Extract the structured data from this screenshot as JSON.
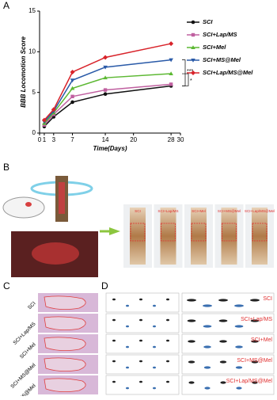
{
  "chart_data": {
    "type": "line",
    "y_label": "BBB Locomotion Score",
    "x_label": "Time(Days)",
    "x": [
      1,
      3,
      7,
      14,
      28
    ],
    "xlim": [
      0,
      30
    ],
    "xticks": [
      0,
      1,
      3,
      7,
      14,
      20,
      28,
      30
    ],
    "ylim": [
      0,
      15
    ],
    "yticks": [
      0,
      5,
      10,
      15
    ],
    "annotations": [
      "***",
      "*"
    ],
    "series": [
      {
        "name": "SCI",
        "color": "#111111",
        "values": [
          0.8,
          2.0,
          3.8,
          4.8,
          5.8
        ]
      },
      {
        "name": "SCI+Lap/MS",
        "color": "#c060a0",
        "values": [
          1.0,
          2.3,
          4.5,
          5.3,
          6.0
        ]
      },
      {
        "name": "SCI+Mel",
        "color": "#5cb832",
        "values": [
          1.2,
          2.5,
          5.5,
          6.8,
          7.3
        ]
      },
      {
        "name": "SCI+MS@Mel",
        "color": "#2a5aa8",
        "values": [
          1.4,
          2.7,
          6.5,
          8.1,
          9.0
        ]
      },
      {
        "name": "SCI+Lap/MS@Mel",
        "color": "#d8232a",
        "values": [
          1.6,
          2.9,
          7.5,
          9.3,
          11.0
        ]
      }
    ]
  },
  "panels": [
    "A",
    "B",
    "C",
    "D"
  ],
  "panel_b": {
    "labels": [
      "SCI",
      "SCI+Lap/MS",
      "SCI+Mel",
      "SCI+MS@Mel",
      "SCI+Lap/MS@Mel"
    ]
  },
  "panel_c": {
    "labels": [
      "SCI",
      "SCI+Lap/MS",
      "SCI+Mel",
      "SCI+MS@Mel",
      "SCI+Lap/MS@Mel"
    ]
  },
  "panel_d": {
    "labels": [
      "SCI",
      "SCI+Lap/MS",
      "SCI+Mel",
      "SCI+MS@Mel",
      "SCI+Lap/MS@Mel"
    ]
  }
}
